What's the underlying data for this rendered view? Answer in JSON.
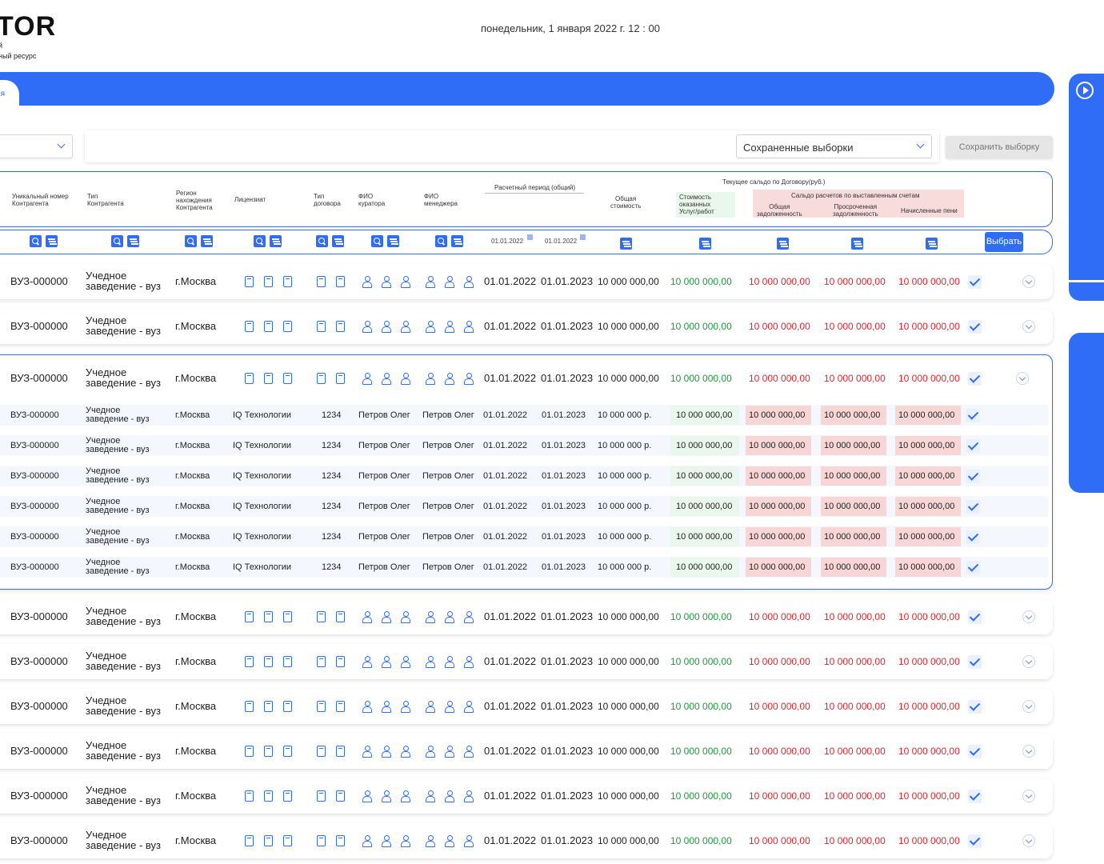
{
  "header": {
    "logo": "TOR",
    "logo_line1": "й",
    "logo_line2": "ный ресурс",
    "datetime": "понедельник, 1 января 2022 г.  12 : 00"
  },
  "band": {
    "tab_label": "я"
  },
  "filters": {
    "saved_selections": "Сохраненные выборки",
    "save_selection": "Сохранить выборку"
  },
  "table_header": {
    "unique_number": [
      "Уникальный номер",
      "Контрагента"
    ],
    "contractor_type": [
      "Тип",
      "Контрагента"
    ],
    "region": [
      "Регион",
      "нахождения",
      "Контрагента"
    ],
    "licensee": "Лицензиат",
    "contract_type": [
      "Тип",
      "договора"
    ],
    "curator": [
      "ФИО",
      "куратора"
    ],
    "manager": [
      "ФИО",
      "менеджера"
    ],
    "period": "Расчетный период (общий)",
    "total_cost": [
      "Общая",
      "стоимость"
    ],
    "services_cost": [
      "Стоимость",
      "оказанных",
      "Услуг/работ"
    ],
    "balance_title": "Текущее сальдо по Договору(руб.)",
    "invoices_title": "Сальдо расчетов по выставленным счетам",
    "total_debt": [
      "Общая",
      "задолженность"
    ],
    "overdue_debt": [
      "Просроченная",
      "задолженность"
    ],
    "penalties": "Начисленные пени",
    "date_from": "01.01.2022",
    "date_to": "01.01.2022",
    "choose_btn": "Выбрать"
  },
  "row_template": {
    "number": "ВУЗ-000000",
    "type_line1": "Учедное",
    "type_line2": "заведение - вуз",
    "city": "г.Москва",
    "date_from": "01.01.2022",
    "date_to": "01.01.2023",
    "total": "10 000 000,00",
    "services": "10 000 000,00",
    "debt": "10 000 000,00",
    "overdue": "10 000 000,00",
    "penalties": "10 000 000,00"
  },
  "sub_template": {
    "number": "ВУЗ-000000",
    "type_line1": "Учедное",
    "type_line2": "заведение - вуз",
    "city": "г.Москва",
    "licensee": "IQ Технологии",
    "contract": "1234",
    "curator": "Петров Олег",
    "manager": "Петров Олег",
    "date_from": "01.01.2022",
    "date_to": "01.01.2023",
    "total": "10 000 000 р.",
    "services": "10 000 000,00",
    "debt": "10 000 000,00",
    "overdue": "10 000 000,00",
    "penalties": "10 000 000,00"
  },
  "rows_count": 9,
  "sub_rows_count": 6,
  "colors": {
    "accent": "#2f6df6",
    "positive": "#1e9a3c",
    "negative": "#e3232b"
  }
}
